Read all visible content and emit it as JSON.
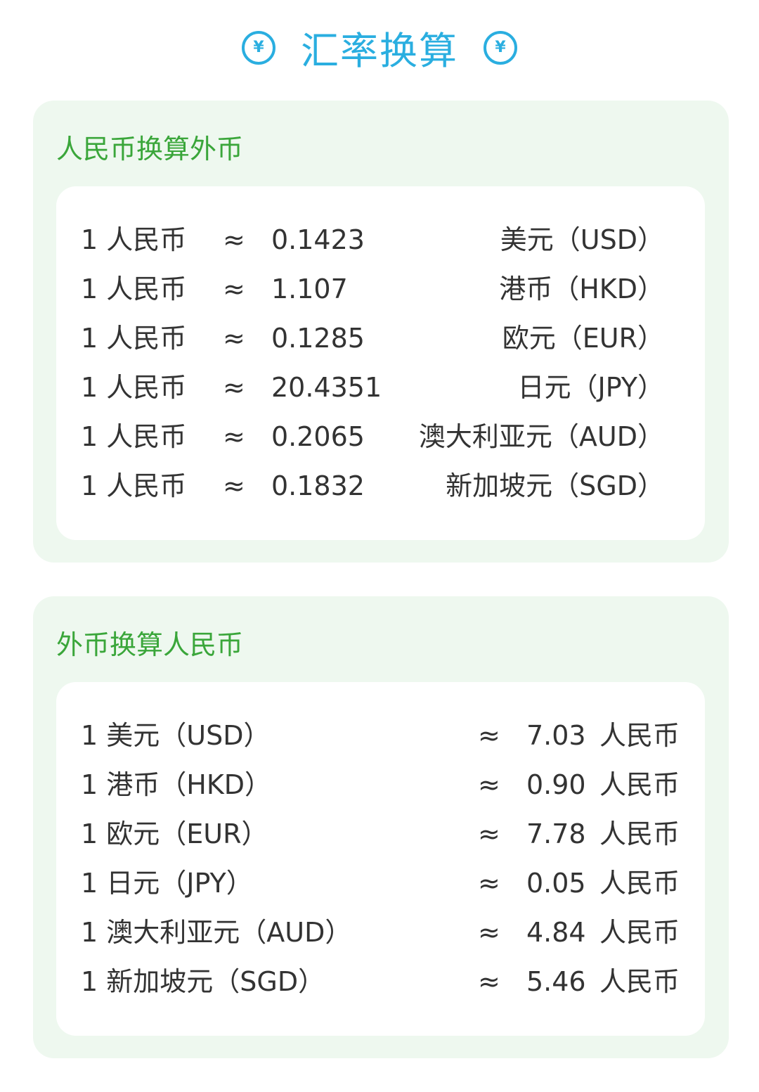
{
  "header": {
    "title": "汇率换算",
    "icon": "yen-circle-icon",
    "color": "#2aaee0"
  },
  "accent_green": "#3aa63a",
  "section1": {
    "title": "人民币换算外币",
    "unit": "1 人民币",
    "approx": "≈",
    "rows": [
      {
        "value": "0.1423",
        "currency": "美元（USD）"
      },
      {
        "value": "1.107",
        "currency": "港币（HKD）"
      },
      {
        "value": "0.1285",
        "currency": "欧元（EUR）"
      },
      {
        "value": "20.4351",
        "currency": "日元（JPY）"
      },
      {
        "value": "0.2065",
        "currency": "澳大利亚元（AUD）"
      },
      {
        "value": "0.1832",
        "currency": "新加坡元（SGD）"
      }
    ]
  },
  "section2": {
    "title": "外币换算人民币",
    "approx": "≈",
    "unit": "人民币",
    "rows": [
      {
        "label": "1 美元（USD）",
        "value": "7.03"
      },
      {
        "label": "1 港币（HKD）",
        "value": "0.90"
      },
      {
        "label": "1 欧元（EUR）",
        "value": "7.78"
      },
      {
        "label": "1 日元（JPY）",
        "value": "0.05"
      },
      {
        "label": "1 澳大利亚元（AUD）",
        "value": "4.84"
      },
      {
        "label": "1 新加坡元（SGD）",
        "value": "5.46"
      }
    ]
  }
}
